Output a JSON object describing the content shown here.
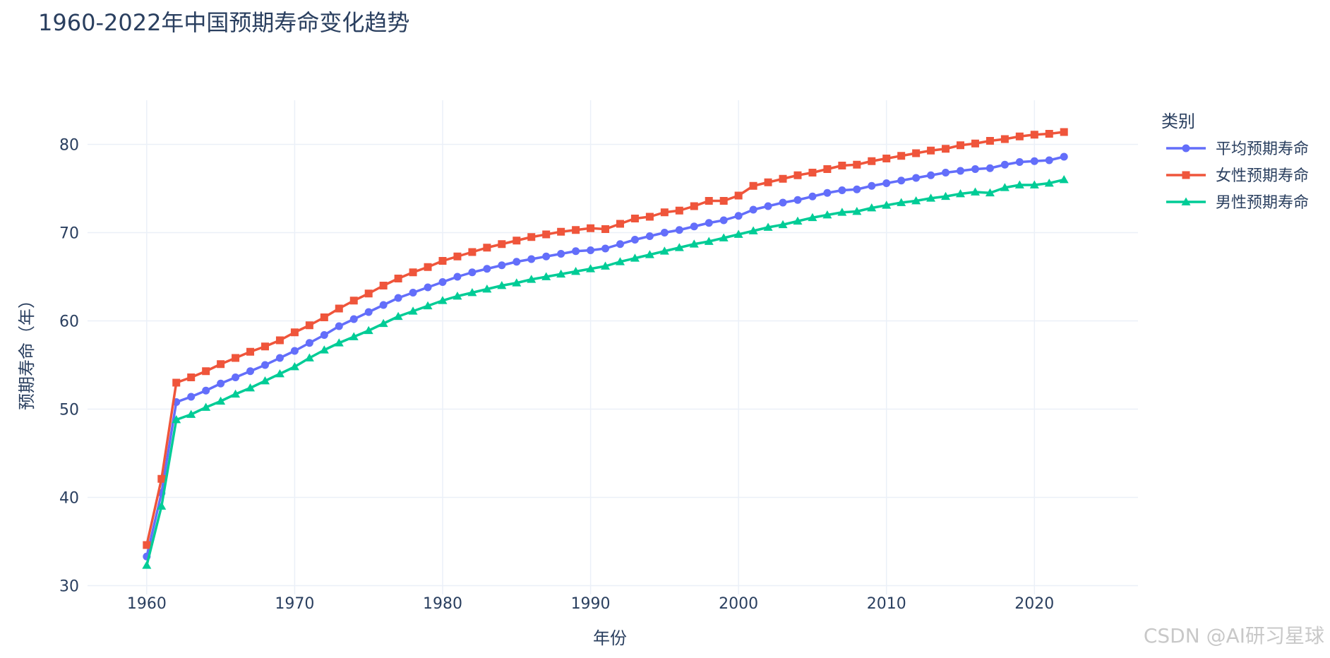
{
  "chart_data": {
    "type": "line",
    "title": "1960-2022年中国预期寿命变化趋势",
    "xlabel": "年份",
    "ylabel": "预期寿命（年）",
    "xlim": [
      1956,
      2027
    ],
    "ylim": [
      29,
      85
    ],
    "xticks": [
      1960,
      1970,
      1980,
      1990,
      2000,
      2010,
      2020
    ],
    "yticks": [
      30,
      40,
      50,
      60,
      70,
      80
    ],
    "grid": true,
    "legend": {
      "title": "类别",
      "placement": "top-right"
    },
    "x": [
      1960,
      1961,
      1962,
      1963,
      1964,
      1965,
      1966,
      1967,
      1968,
      1969,
      1970,
      1971,
      1972,
      1973,
      1974,
      1975,
      1976,
      1977,
      1978,
      1979,
      1980,
      1981,
      1982,
      1983,
      1984,
      1985,
      1986,
      1987,
      1988,
      1989,
      1990,
      1991,
      1992,
      1993,
      1994,
      1995,
      1996,
      1997,
      1998,
      1999,
      2000,
      2001,
      2002,
      2003,
      2004,
      2005,
      2006,
      2007,
      2008,
      2009,
      2010,
      2011,
      2012,
      2013,
      2014,
      2015,
      2016,
      2017,
      2018,
      2019,
      2020,
      2021,
      2022
    ],
    "series": [
      {
        "name": "平均预期寿命",
        "color": "#636efa",
        "marker": "circle",
        "values": [
          33.3,
          40.5,
          50.8,
          51.4,
          52.1,
          52.9,
          53.6,
          54.3,
          55.0,
          55.8,
          56.6,
          57.5,
          58.4,
          59.4,
          60.2,
          61.0,
          61.8,
          62.6,
          63.2,
          63.8,
          64.4,
          65.0,
          65.5,
          65.9,
          66.3,
          66.7,
          67.0,
          67.3,
          67.6,
          67.9,
          68.0,
          68.2,
          68.7,
          69.2,
          69.6,
          70.0,
          70.3,
          70.7,
          71.1,
          71.4,
          71.9,
          72.6,
          73.0,
          73.4,
          73.7,
          74.1,
          74.5,
          74.8,
          74.9,
          75.3,
          75.6,
          75.9,
          76.2,
          76.5,
          76.8,
          77.0,
          77.2,
          77.3,
          77.7,
          78.0,
          78.1,
          78.2,
          78.6
        ]
      },
      {
        "name": "女性预期寿命",
        "color": "#ef553b",
        "marker": "square",
        "values": [
          34.6,
          42.1,
          53.0,
          53.6,
          54.3,
          55.1,
          55.8,
          56.5,
          57.1,
          57.8,
          58.7,
          59.5,
          60.4,
          61.4,
          62.3,
          63.1,
          64.0,
          64.8,
          65.5,
          66.1,
          66.8,
          67.3,
          67.8,
          68.3,
          68.7,
          69.1,
          69.5,
          69.8,
          70.1,
          70.3,
          70.5,
          70.4,
          71.0,
          71.6,
          71.8,
          72.3,
          72.5,
          73.0,
          73.6,
          73.6,
          74.2,
          75.3,
          75.7,
          76.1,
          76.5,
          76.8,
          77.2,
          77.6,
          77.7,
          78.1,
          78.4,
          78.7,
          79.0,
          79.3,
          79.5,
          79.9,
          80.1,
          80.4,
          80.6,
          80.9,
          81.1,
          81.2,
          81.4
        ]
      },
      {
        "name": "男性预期寿命",
        "color": "#00cc96",
        "marker": "triangle",
        "values": [
          32.3,
          39.0,
          48.8,
          49.4,
          50.2,
          50.9,
          51.7,
          52.4,
          53.2,
          54.0,
          54.8,
          55.8,
          56.7,
          57.5,
          58.2,
          58.9,
          59.7,
          60.5,
          61.1,
          61.7,
          62.3,
          62.8,
          63.2,
          63.6,
          64.0,
          64.3,
          64.7,
          65.0,
          65.3,
          65.6,
          65.9,
          66.2,
          66.7,
          67.1,
          67.5,
          67.9,
          68.3,
          68.7,
          69.0,
          69.4,
          69.8,
          70.2,
          70.6,
          70.9,
          71.3,
          71.7,
          72.0,
          72.3,
          72.4,
          72.8,
          73.1,
          73.4,
          73.6,
          73.9,
          74.1,
          74.4,
          74.6,
          74.5,
          75.1,
          75.4,
          75.4,
          75.6,
          76.0
        ]
      }
    ]
  },
  "watermark": "CSDN @AI研习星球"
}
